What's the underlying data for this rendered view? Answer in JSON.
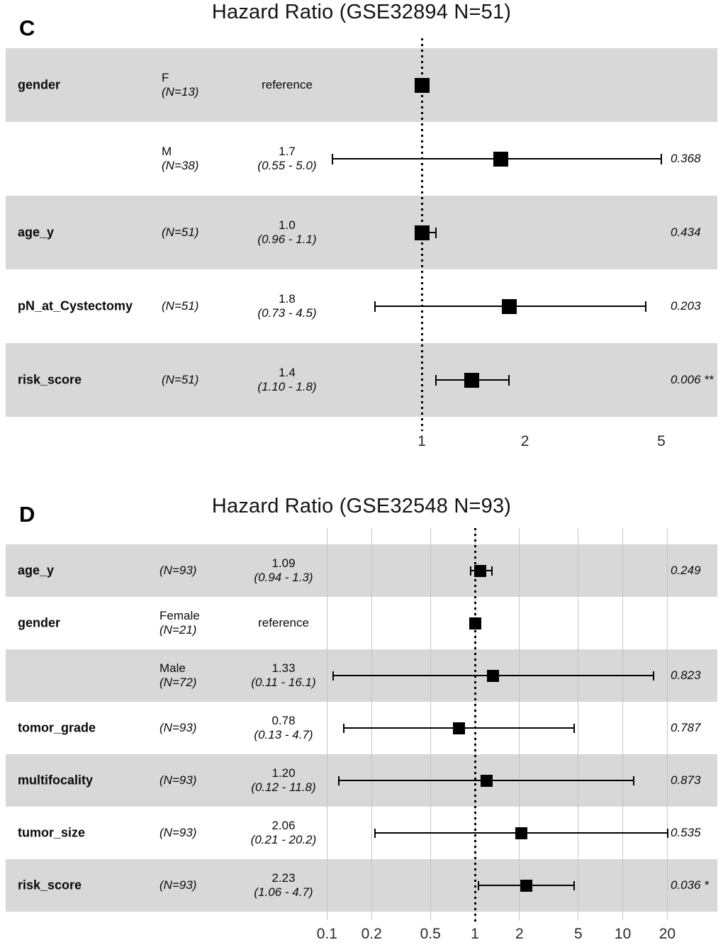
{
  "figure": {
    "background": "#ffffff",
    "stripe_color": "#d8d8d8",
    "marker_color": "#000000",
    "gridline_color": "#c4c4c4",
    "reference_line_color": "#000000"
  },
  "chart_data": [
    {
      "type": "forest",
      "panel_label": "C",
      "title": "Hazard Ratio (GSE32894 N=51)",
      "x_scale": "log",
      "x_ticks": [
        "1",
        "2",
        "5"
      ],
      "x_tick_values": [
        1,
        2,
        5
      ],
      "reference_line": 1,
      "show_gridlines": false,
      "legend": "none",
      "rows": [
        {
          "variable": "gender",
          "group": "F",
          "n_label": "(N=13)",
          "estimate_label": "reference",
          "ci_label": "",
          "hr": 1.0,
          "ci_low": null,
          "ci_high": null,
          "p": "",
          "shaded": true,
          "reference": true
        },
        {
          "variable": "",
          "group": "M",
          "n_label": "(N=38)",
          "estimate_label": "1.7",
          "ci_label": "(0.55 - 5.0)",
          "hr": 1.7,
          "ci_low": 0.55,
          "ci_high": 5.0,
          "p": "0.368",
          "shaded": false,
          "reference": false
        },
        {
          "variable": "age_y",
          "group": "",
          "n_label": "(N=51)",
          "estimate_label": "1.0",
          "ci_label": "(0.96 - 1.1)",
          "hr": 1.0,
          "ci_low": 0.96,
          "ci_high": 1.1,
          "p": "0.434",
          "shaded": true,
          "reference": false
        },
        {
          "variable": "pN_at_Cystectomy",
          "group": "",
          "n_label": "(N=51)",
          "estimate_label": "1.8",
          "ci_label": "(0.73 - 4.5)",
          "hr": 1.8,
          "ci_low": 0.73,
          "ci_high": 4.5,
          "p": "0.203",
          "shaded": false,
          "reference": false
        },
        {
          "variable": "risk_score",
          "group": "",
          "n_label": "(N=51)",
          "estimate_label": "1.4",
          "ci_label": "(1.10 - 1.8)",
          "hr": 1.4,
          "ci_low": 1.1,
          "ci_high": 1.8,
          "p": "0.006 **",
          "shaded": true,
          "reference": false
        }
      ]
    },
    {
      "type": "forest",
      "panel_label": "D",
      "title": "Hazard Ratio (GSE32548 N=93)",
      "x_scale": "log",
      "x_ticks": [
        "0.1",
        "0.2",
        "0.5",
        "1",
        "2",
        "5",
        "10",
        "20"
      ],
      "x_tick_values": [
        0.1,
        0.2,
        0.5,
        1,
        2,
        5,
        10,
        20
      ],
      "reference_line": 1,
      "show_gridlines": true,
      "legend": "none",
      "rows": [
        {
          "variable": "age_y",
          "group": "",
          "n_label": "(N=93)",
          "estimate_label": "1.09",
          "ci_label": "(0.94 - 1.3)",
          "hr": 1.09,
          "ci_low": 0.94,
          "ci_high": 1.3,
          "p": "0.249",
          "shaded": true,
          "reference": false
        },
        {
          "variable": "gender",
          "group": "Female",
          "n_label": "(N=21)",
          "estimate_label": "reference",
          "ci_label": "",
          "hr": 1.0,
          "ci_low": null,
          "ci_high": null,
          "p": "",
          "shaded": false,
          "reference": true
        },
        {
          "variable": "",
          "group": "Male",
          "n_label": "(N=72)",
          "estimate_label": "1.33",
          "ci_label": "(0.11 - 16.1)",
          "hr": 1.33,
          "ci_low": 0.11,
          "ci_high": 16.1,
          "p": "0.823",
          "shaded": true,
          "reference": false
        },
        {
          "variable": "tomor_grade",
          "group": "",
          "n_label": "(N=93)",
          "estimate_label": "0.78",
          "ci_label": "(0.13 - 4.7)",
          "hr": 0.78,
          "ci_low": 0.13,
          "ci_high": 4.7,
          "p": "0.787",
          "shaded": false,
          "reference": false
        },
        {
          "variable": "multifocality",
          "group": "",
          "n_label": "(N=93)",
          "estimate_label": "1.20",
          "ci_label": "(0.12 - 11.8)",
          "hr": 1.2,
          "ci_low": 0.12,
          "ci_high": 11.8,
          "p": "0.873",
          "shaded": true,
          "reference": false
        },
        {
          "variable": "tumor_size",
          "group": "",
          "n_label": "(N=93)",
          "estimate_label": "2.06",
          "ci_label": "(0.21 - 20.2)",
          "hr": 2.06,
          "ci_low": 0.21,
          "ci_high": 20.2,
          "p": "0.535",
          "shaded": false,
          "reference": false
        },
        {
          "variable": "risk_score",
          "group": "",
          "n_label": "(N=93)",
          "estimate_label": "2.23",
          "ci_label": "(1.06 - 4.7)",
          "hr": 2.23,
          "ci_low": 1.06,
          "ci_high": 4.7,
          "p": "0.036 *",
          "shaded": true,
          "reference": false
        }
      ]
    }
  ]
}
